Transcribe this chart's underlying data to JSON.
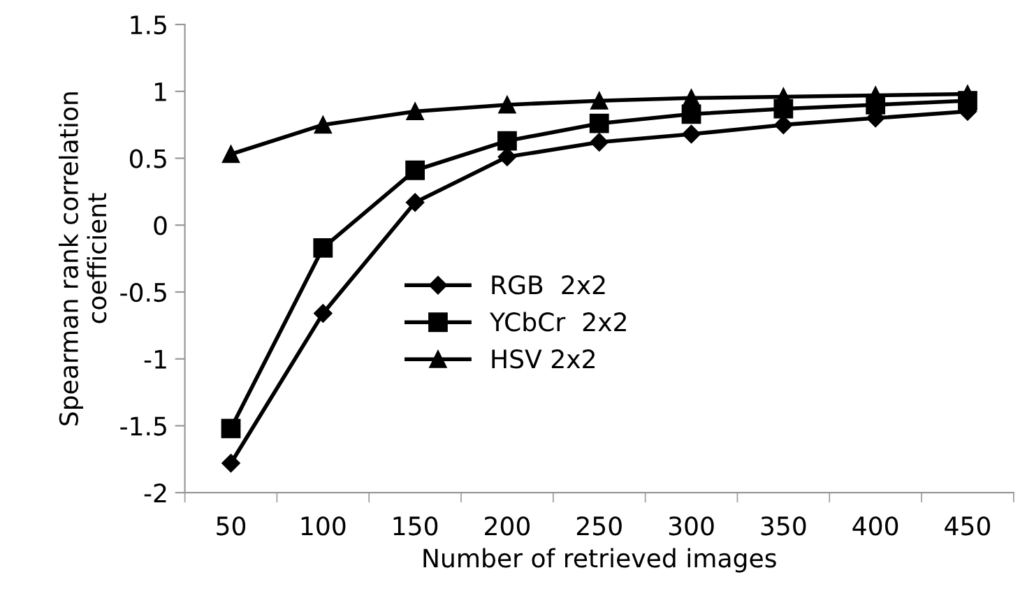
{
  "chart_data": {
    "type": "line",
    "xlabel": "Number of retrieved images",
    "ylabel": "Spearman rank correlation\ncoefficient",
    "categories": [
      "50",
      "100",
      "150",
      "200",
      "250",
      "300",
      "350",
      "400",
      "450"
    ],
    "series": [
      {
        "name": "RGB  2x2",
        "color": "#000000",
        "marker": "diamond",
        "values": [
          -1.78,
          -0.66,
          0.17,
          0.51,
          0.62,
          0.68,
          0.75,
          0.8,
          0.85
        ]
      },
      {
        "name": "YCbCr  2x2",
        "color": "#000000",
        "marker": "square",
        "values": [
          -1.52,
          -0.17,
          0.41,
          0.63,
          0.76,
          0.83,
          0.87,
          0.9,
          0.93
        ]
      },
      {
        "name": "HSV 2x2",
        "color": "#000000",
        "marker": "triangle",
        "values": [
          0.53,
          0.75,
          0.85,
          0.9,
          0.93,
          0.95,
          0.96,
          0.97,
          0.98
        ]
      }
    ],
    "ylim": [
      -2,
      1.5
    ],
    "yticks": [
      -2,
      -1.5,
      -1,
      -0.5,
      0,
      0.5,
      1,
      1.5
    ],
    "grid": false,
    "legend": "center left",
    "line_style": "solid"
  }
}
